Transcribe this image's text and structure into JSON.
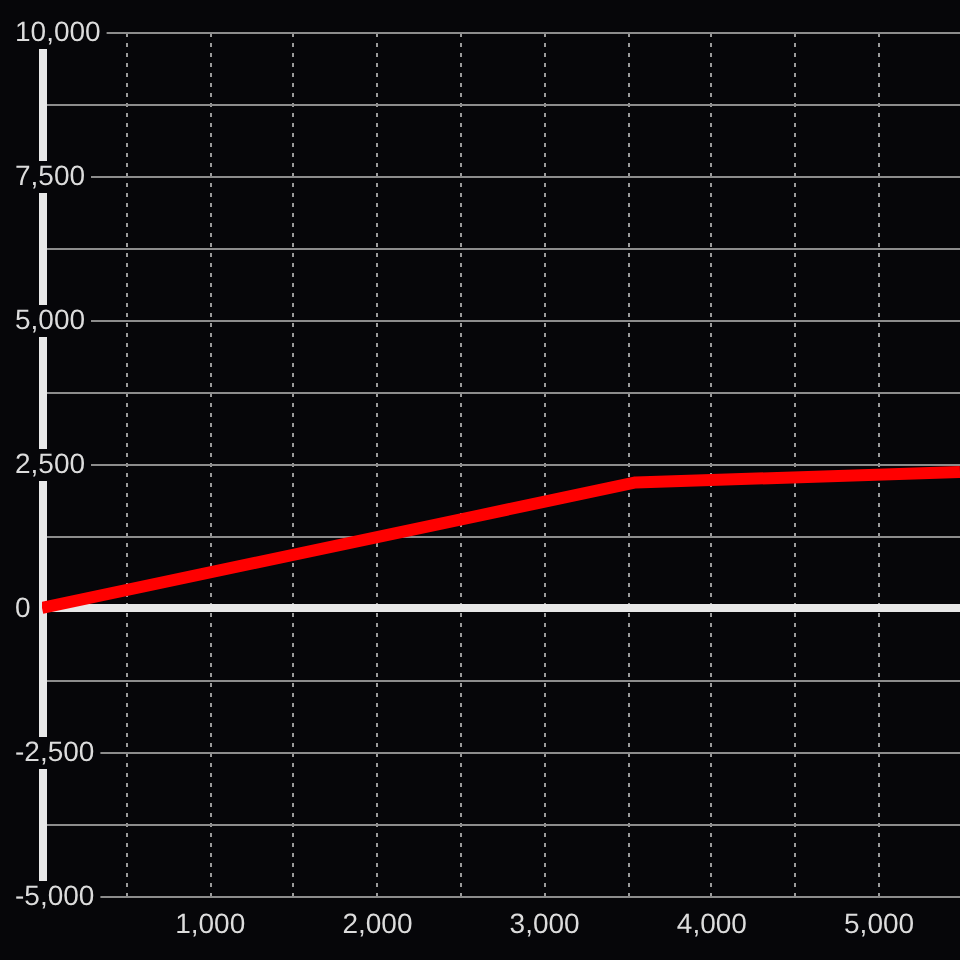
{
  "chart_data": {
    "type": "line",
    "x": [
      0,
      3550,
      5490
    ],
    "values": [
      0,
      2180,
      2360
    ],
    "color": "#ff0000",
    "line_style": "solid",
    "xlim": [
      0,
      5490
    ],
    "xticks": [
      {
        "value": 500,
        "label": null
      },
      {
        "value": 1000,
        "label": "1,000"
      },
      {
        "value": 1500,
        "label": null
      },
      {
        "value": 2000,
        "label": "2,000"
      },
      {
        "value": 2500,
        "label": null
      },
      {
        "value": 3000,
        "label": "3,000"
      },
      {
        "value": 3500,
        "label": null
      },
      {
        "value": 4000,
        "label": "4,000"
      },
      {
        "value": 4500,
        "label": null
      },
      {
        "value": 5000,
        "label": "5,000"
      }
    ],
    "ylim": [
      -5000,
      10000
    ],
    "yticks": [
      {
        "value": -5000,
        "label": "-5,000"
      },
      {
        "value": -3750,
        "label": null
      },
      {
        "value": -2500,
        "label": "-2,500"
      },
      {
        "value": -1250,
        "label": null
      },
      0,
      {
        "value": 1250,
        "label": null
      },
      {
        "value": 2500,
        "label": "2,500"
      },
      {
        "value": 3750,
        "label": null
      },
      {
        "value": 5000,
        "label": "5,000"
      },
      {
        "value": 6250,
        "label": null
      },
      {
        "value": 7500,
        "label": "7,500"
      },
      {
        "value": 8750,
        "label": null
      },
      {
        "value": 10000,
        "label": "10,000"
      }
    ],
    "grid": true,
    "ref_lines": [
      {
        "axis": "y",
        "value": 0,
        "color": "#e8e8e8"
      }
    ]
  }
}
